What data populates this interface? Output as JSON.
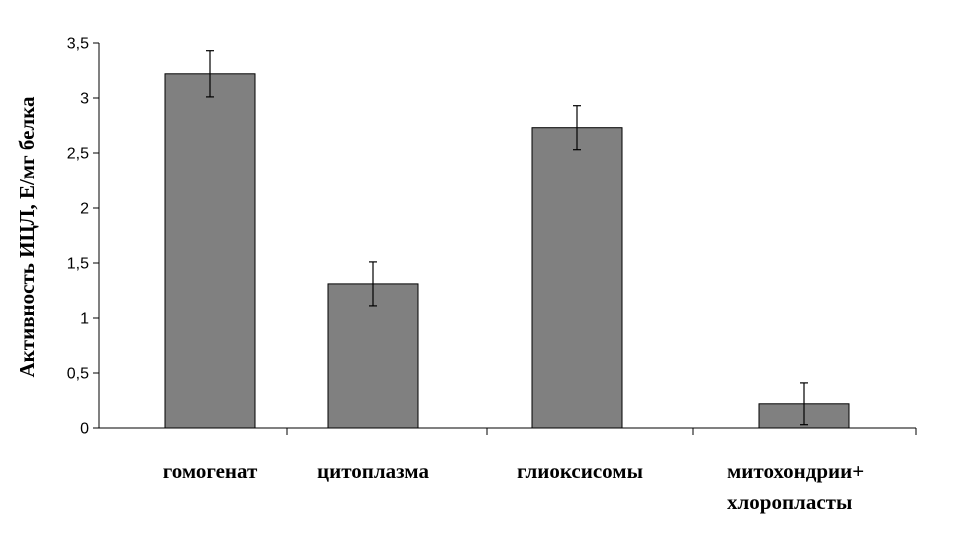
{
  "chart_data": {
    "type": "bar",
    "title": "",
    "xlabel": "",
    "ylabel": "Активность ИЦЛ, Е/мг белка",
    "categories": [
      [
        "гомогенат"
      ],
      [
        "цитоплазма"
      ],
      [
        "глиоксисомы"
      ],
      [
        "митохондрии+",
        "хлоропласты"
      ]
    ],
    "series": [
      {
        "values": [
          3.22,
          1.31,
          2.73,
          0.22
        ],
        "errors": [
          0.21,
          0.2,
          0.2,
          0.19
        ]
      }
    ],
    "ylim": [
      0,
      3.5
    ],
    "yticks": [
      "0",
      "0,5",
      "1",
      "1,5",
      "2",
      "2,5",
      "3",
      "3,5"
    ],
    "grid": false,
    "legend": "none",
    "colors": {
      "bar_fill": "#808080",
      "bar_stroke": "#000000",
      "axis": "#000000"
    }
  }
}
